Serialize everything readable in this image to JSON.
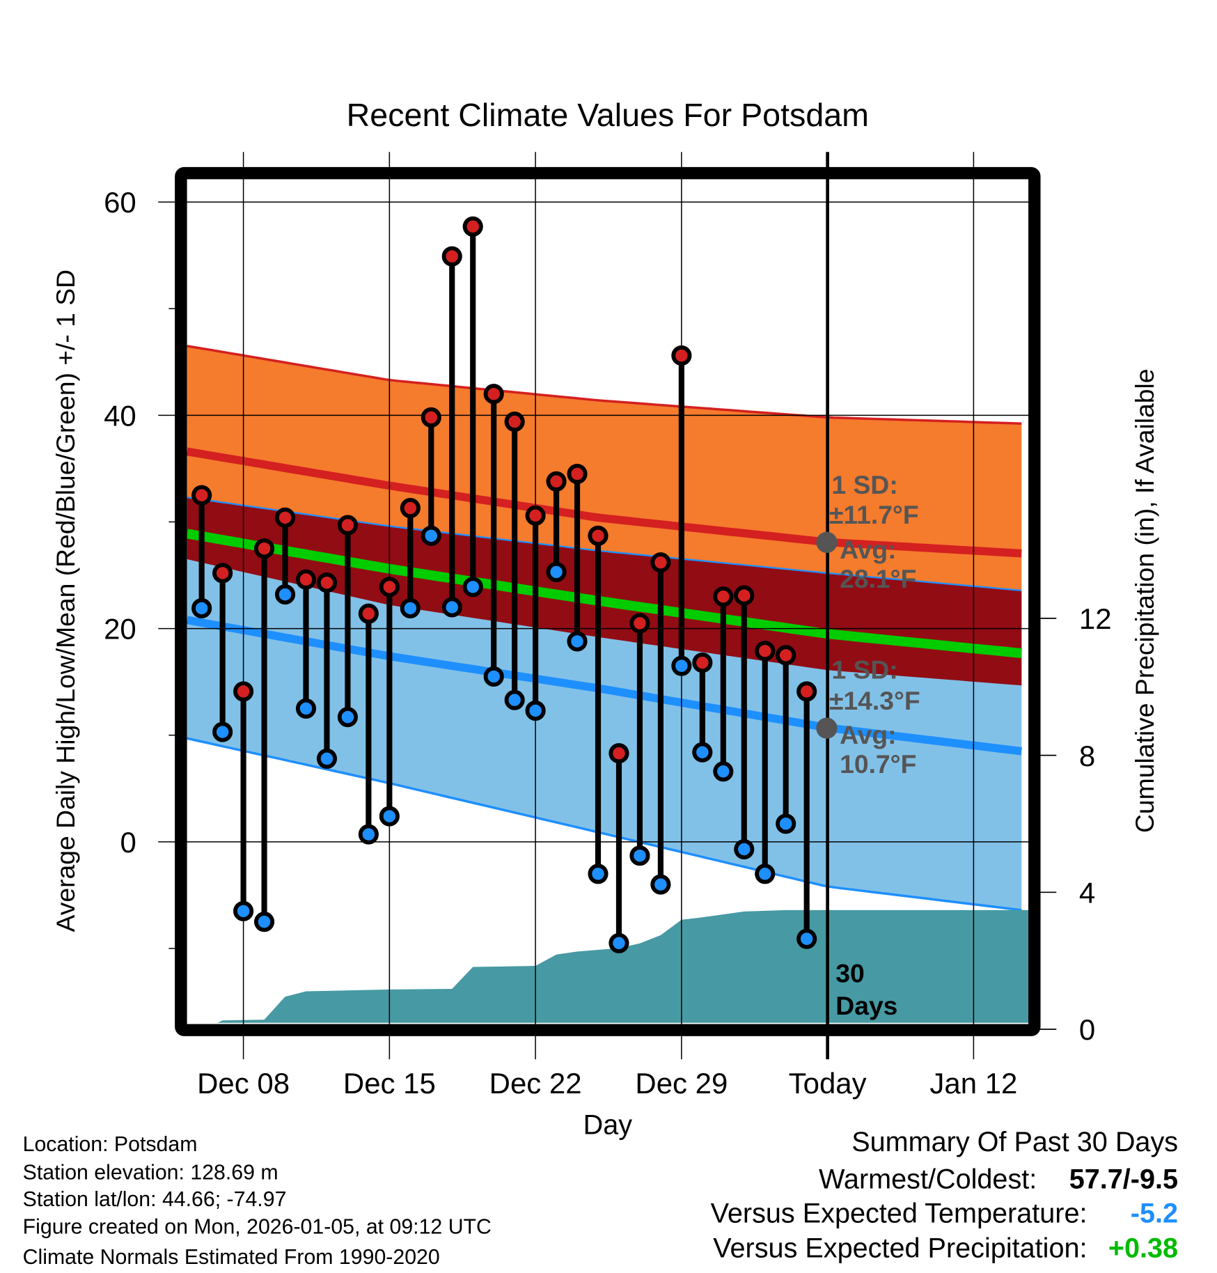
{
  "chart_data": {
    "type": "line",
    "title": "Recent Climate Values For Potsdam",
    "xlabel": "Day",
    "ylabel": "Average Daily High/Low/Mean (Red/Blue/Green) +/- 1 SD",
    "y2label": "Cumulative Precipitation (in), If Available",
    "ylim": [
      -17,
      62
    ],
    "y2lim": [
      0,
      24.6
    ],
    "y_ticks": [
      "60",
      "40",
      "20",
      "0"
    ],
    "y_tick_values": [
      60,
      40,
      20,
      0
    ],
    "y_minor_ticks": [
      -10,
      10,
      30,
      50
    ],
    "y2_ticks": [
      "12",
      "8",
      "4",
      "0"
    ],
    "y2_tick_values": [
      12,
      8,
      4,
      0
    ],
    "x_ticks": [
      "Dec 08",
      "Dec 15",
      "Dec 22",
      "Dec 29",
      "Today",
      "Jan 12"
    ],
    "x_tick_days": [
      8,
      15,
      22,
      29,
      36,
      43
    ],
    "x_range_days": [
      5.3,
      45.7
    ],
    "today_day": 36,
    "grid": true,
    "observed": {
      "days": [
        6,
        7,
        8,
        9,
        10,
        11,
        12,
        13,
        14,
        15,
        16,
        17,
        18,
        19,
        20,
        21,
        22,
        23,
        24,
        25,
        26,
        27,
        28,
        29,
        30,
        31,
        32,
        33,
        34,
        35
      ],
      "highs": [
        32.5,
        25.2,
        14.1,
        27.5,
        30.4,
        24.6,
        24.3,
        29.7,
        21.4,
        23.9,
        31.3,
        39.8,
        54.9,
        57.7,
        42.0,
        39.4,
        30.6,
        33.8,
        34.5,
        28.7,
        8.3,
        20.5,
        26.2,
        45.6,
        16.8,
        23.0,
        23.1,
        17.9,
        17.5,
        14.1
      ],
      "lows": [
        21.9,
        10.3,
        -6.5,
        -7.5,
        23.2,
        12.5,
        7.8,
        11.7,
        0.7,
        2.4,
        21.9,
        28.7,
        22.0,
        23.9,
        15.5,
        13.3,
        12.3,
        25.3,
        18.8,
        -3.0,
        -9.5,
        -1.3,
        -4.0,
        16.5,
        8.4,
        6.6,
        -0.7,
        -3.0,
        1.7,
        -9.1
      ]
    },
    "normals": {
      "days": [
        5.3,
        15,
        25,
        36,
        45.7
      ],
      "high_plus_sd": [
        46.5,
        43.3,
        41.4,
        39.8,
        39.2
      ],
      "high_mean": [
        36.6,
        33.4,
        30.4,
        28.1,
        27.0
      ],
      "high_minus_sd": [
        26.5,
        22.2,
        19.2,
        16.1,
        14.6
      ],
      "mean": [
        28.9,
        25.6,
        22.6,
        19.5,
        17.6
      ],
      "low_plus_sd": [
        32.3,
        29.6,
        27.3,
        25.2,
        23.5
      ],
      "low_mean": [
        20.8,
        17.4,
        14.4,
        10.7,
        8.4
      ],
      "low_minus_sd": [
        9.7,
        5.5,
        0.9,
        -4.2,
        -6.5
      ]
    },
    "precip": {
      "days": [
        5.3,
        6.8,
        7,
        9,
        10,
        11,
        15,
        18,
        19,
        22,
        23,
        24,
        26,
        27,
        28,
        29,
        30,
        32,
        34,
        45.7
      ],
      "cumulative": [
        0,
        0.2,
        0.26,
        0.28,
        0.95,
        1.11,
        1.16,
        1.18,
        1.82,
        1.85,
        2.18,
        2.27,
        2.37,
        2.51,
        2.75,
        3.2,
        3.27,
        3.44,
        3.48,
        3.48
      ]
    },
    "annotations": {
      "high_sd_label": "1 SD:",
      "high_sd_value": "±11.7°F",
      "high_avg_label": "Avg:",
      "high_avg_value": "28.1°F",
      "low_sd_label": "1 SD:",
      "low_sd_value": "±14.3°F",
      "low_avg_label": "Avg:",
      "low_avg_value": "10.7°F",
      "period_num": "30",
      "period_unit": "Days"
    }
  },
  "colors": {
    "high_band": "#f57b2d",
    "low_band": "#82c1e7",
    "overlap": "#920c14",
    "high_line": "#d42020",
    "low_line": "#1e8fff",
    "mean_line": "#00cc00",
    "precip": "#479aa3",
    "avg_dot": "#555555"
  },
  "info": {
    "location": "Location: Potsdam",
    "elevation": "Station elevation: 128.69 m",
    "latlon": "Station lat/lon: 44.66; -74.97",
    "created": "Figure created on Mon, 2026-01-05, at 09:12 UTC",
    "normals": "Climate Normals Estimated From 1990-2020"
  },
  "summary": {
    "title": "Summary Of Past 30 Days",
    "warmest_label": "Warmest/Coldest:",
    "warmest_value": "57.7/-9.5",
    "temp_label": "Versus Expected Temperature:",
    "temp_value": "-5.2",
    "precip_label": "Versus Expected Precipitation:",
    "precip_value": "+0.38"
  }
}
